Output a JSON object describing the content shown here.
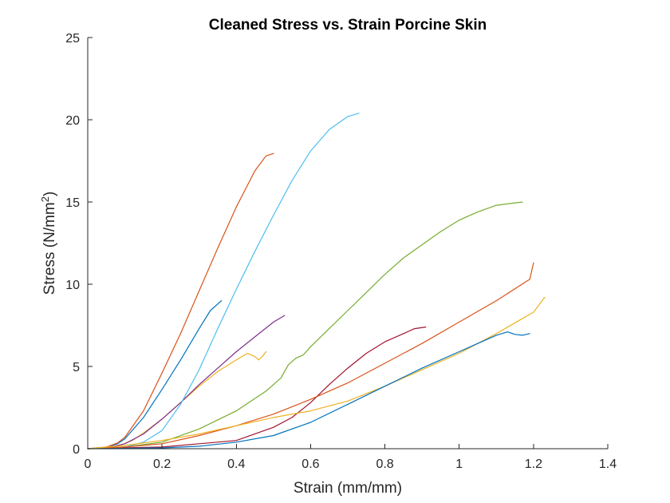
{
  "chart_data": {
    "type": "line",
    "title": "Cleaned Stress vs. Strain Porcine Skin",
    "xlabel": "Strain (mm/mm)",
    "ylabel": "Stress (N/mm2)",
    "xlim": [
      0,
      1.4
    ],
    "ylim": [
      0,
      25
    ],
    "xticks": [
      0,
      0.2,
      0.4,
      0.6,
      0.8,
      1,
      1.2,
      1.4
    ],
    "xtick_labels": [
      "0",
      "0.2",
      "0.4",
      "0.6",
      "0.8",
      "1",
      "1.2",
      "1.4"
    ],
    "yticks": [
      0,
      5,
      10,
      15,
      20,
      25
    ],
    "ytick_labels": [
      "0",
      "5",
      "10",
      "15",
      "20",
      "25"
    ],
    "grid": false,
    "legend": "none",
    "series": [
      {
        "color": "#0072BD",
        "points": [
          [
            0,
            0
          ],
          [
            0.05,
            0.08
          ],
          [
            0.08,
            0.3
          ],
          [
            0.1,
            0.6
          ],
          [
            0.15,
            1.9
          ],
          [
            0.2,
            3.6
          ],
          [
            0.25,
            5.4
          ],
          [
            0.3,
            7.3
          ],
          [
            0.33,
            8.4
          ],
          [
            0.36,
            9.0
          ]
        ]
      },
      {
        "color": "#D95319",
        "points": [
          [
            0,
            0
          ],
          [
            0.05,
            0.1
          ],
          [
            0.08,
            0.35
          ],
          [
            0.1,
            0.7
          ],
          [
            0.15,
            2.3
          ],
          [
            0.2,
            4.6
          ],
          [
            0.25,
            7.0
          ],
          [
            0.3,
            9.6
          ],
          [
            0.35,
            12.2
          ],
          [
            0.4,
            14.7
          ],
          [
            0.45,
            16.9
          ],
          [
            0.48,
            17.8
          ],
          [
            0.5,
            17.95
          ]
        ]
      },
      {
        "color": "#EDB120",
        "points": [
          [
            0,
            0
          ],
          [
            0.08,
            0.15
          ],
          [
            0.12,
            0.5
          ],
          [
            0.15,
            0.95
          ],
          [
            0.2,
            1.8
          ],
          [
            0.25,
            2.8
          ],
          [
            0.3,
            3.8
          ],
          [
            0.35,
            4.7
          ],
          [
            0.4,
            5.4
          ],
          [
            0.43,
            5.8
          ],
          [
            0.45,
            5.6
          ],
          [
            0.46,
            5.4
          ],
          [
            0.47,
            5.6
          ],
          [
            0.48,
            5.9
          ]
        ]
      },
      {
        "color": "#7E2F8E",
        "points": [
          [
            0,
            0
          ],
          [
            0.05,
            0.05
          ],
          [
            0.1,
            0.3
          ],
          [
            0.15,
            0.9
          ],
          [
            0.2,
            1.8
          ],
          [
            0.25,
            2.8
          ],
          [
            0.3,
            3.9
          ],
          [
            0.35,
            4.9
          ],
          [
            0.4,
            5.9
          ],
          [
            0.45,
            6.8
          ],
          [
            0.5,
            7.7
          ],
          [
            0.53,
            8.1
          ]
        ]
      },
      {
        "color": "#77AC30",
        "points": [
          [
            0,
            0
          ],
          [
            0.1,
            0.1
          ],
          [
            0.2,
            0.4
          ],
          [
            0.3,
            1.2
          ],
          [
            0.4,
            2.3
          ],
          [
            0.48,
            3.5
          ],
          [
            0.52,
            4.3
          ],
          [
            0.54,
            5.1
          ],
          [
            0.56,
            5.5
          ],
          [
            0.58,
            5.7
          ],
          [
            0.6,
            6.2
          ],
          [
            0.65,
            7.3
          ],
          [
            0.7,
            8.4
          ],
          [
            0.75,
            9.5
          ],
          [
            0.8,
            10.6
          ],
          [
            0.85,
            11.6
          ],
          [
            0.9,
            12.4
          ],
          [
            0.95,
            13.2
          ],
          [
            1.0,
            13.9
          ],
          [
            1.05,
            14.4
          ],
          [
            1.1,
            14.8
          ],
          [
            1.17,
            15.0
          ]
        ]
      },
      {
        "color": "#4DBEEE",
        "points": [
          [
            0,
            0
          ],
          [
            0.1,
            0.1
          ],
          [
            0.15,
            0.4
          ],
          [
            0.2,
            1.1
          ],
          [
            0.25,
            2.7
          ],
          [
            0.3,
            4.8
          ],
          [
            0.35,
            7.3
          ],
          [
            0.4,
            9.7
          ],
          [
            0.45,
            12.0
          ],
          [
            0.5,
            14.2
          ],
          [
            0.55,
            16.3
          ],
          [
            0.6,
            18.1
          ],
          [
            0.65,
            19.4
          ],
          [
            0.7,
            20.2
          ],
          [
            0.73,
            20.4
          ]
        ]
      },
      {
        "color": "#A2142F",
        "points": [
          [
            0,
            0
          ],
          [
            0.2,
            0.1
          ],
          [
            0.4,
            0.5
          ],
          [
            0.5,
            1.3
          ],
          [
            0.55,
            1.9
          ],
          [
            0.6,
            2.8
          ],
          [
            0.65,
            3.9
          ],
          [
            0.7,
            4.9
          ],
          [
            0.75,
            5.8
          ],
          [
            0.8,
            6.5
          ],
          [
            0.85,
            7.0
          ],
          [
            0.88,
            7.3
          ],
          [
            0.91,
            7.4
          ]
        ]
      },
      {
        "color": "#D95319",
        "points": [
          [
            0,
            0
          ],
          [
            0.1,
            0.1
          ],
          [
            0.2,
            0.3
          ],
          [
            0.3,
            0.8
          ],
          [
            0.4,
            1.4
          ],
          [
            0.5,
            2.1
          ],
          [
            0.6,
            3.0
          ],
          [
            0.7,
            4.0
          ],
          [
            0.8,
            5.2
          ],
          [
            0.9,
            6.4
          ],
          [
            1.0,
            7.7
          ],
          [
            1.1,
            9.0
          ],
          [
            1.19,
            10.3
          ],
          [
            1.2,
            11.3
          ]
        ]
      },
      {
        "color": "#EDB120",
        "points": [
          [
            0,
            0
          ],
          [
            0.1,
            0.2
          ],
          [
            0.2,
            0.5
          ],
          [
            0.3,
            0.9
          ],
          [
            0.4,
            1.4
          ],
          [
            0.5,
            1.9
          ],
          [
            0.6,
            2.3
          ],
          [
            0.7,
            2.9
          ],
          [
            0.8,
            3.8
          ],
          [
            0.9,
            4.8
          ],
          [
            1.0,
            5.8
          ],
          [
            1.1,
            7.0
          ],
          [
            1.2,
            8.3
          ],
          [
            1.23,
            9.2
          ]
        ]
      },
      {
        "color": "#0072BD",
        "points": [
          [
            0,
            0
          ],
          [
            0.2,
            0.05
          ],
          [
            0.3,
            0.15
          ],
          [
            0.4,
            0.4
          ],
          [
            0.5,
            0.8
          ],
          [
            0.6,
            1.6
          ],
          [
            0.7,
            2.7
          ],
          [
            0.8,
            3.8
          ],
          [
            0.9,
            4.9
          ],
          [
            1.0,
            5.9
          ],
          [
            1.05,
            6.4
          ],
          [
            1.1,
            6.9
          ],
          [
            1.13,
            7.1
          ],
          [
            1.15,
            6.95
          ],
          [
            1.17,
            6.9
          ],
          [
            1.19,
            7.0
          ]
        ]
      }
    ]
  }
}
